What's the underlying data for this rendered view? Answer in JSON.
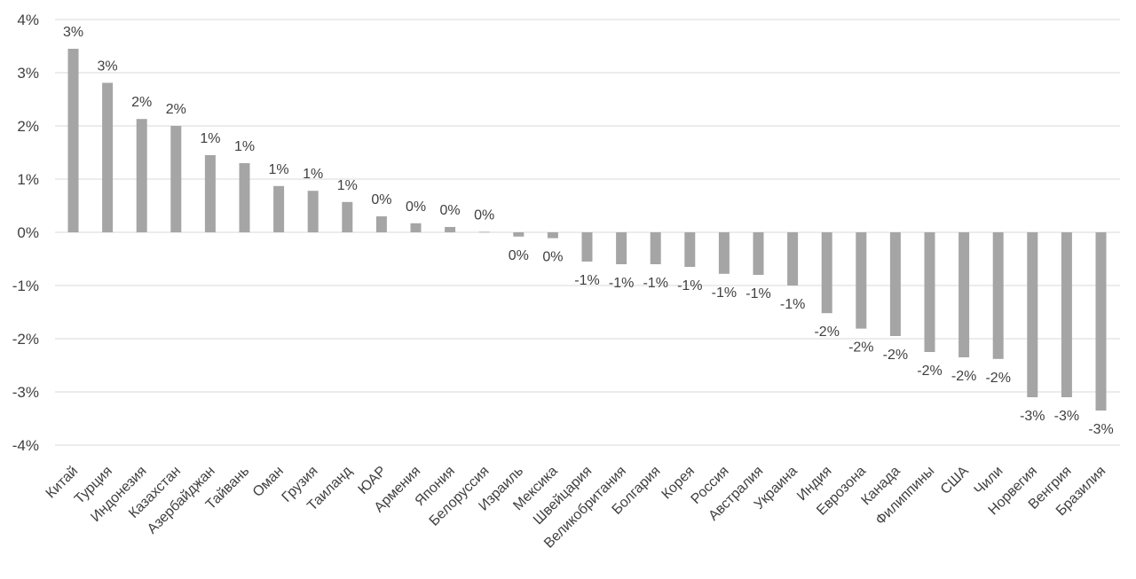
{
  "chart_data": {
    "type": "bar",
    "title": "",
    "xlabel": "",
    "ylabel": "",
    "ylim": [
      -0.04,
      0.04
    ],
    "y_ticks": [
      {
        "value": 0.04,
        "label": "4%"
      },
      {
        "value": 0.03,
        "label": "3%"
      },
      {
        "value": 0.02,
        "label": "2%"
      },
      {
        "value": 0.01,
        "label": "1%"
      },
      {
        "value": 0.0,
        "label": "0%"
      },
      {
        "value": -0.01,
        "label": "-1%"
      },
      {
        "value": -0.02,
        "label": "-2%"
      },
      {
        "value": -0.03,
        "label": "-3%"
      },
      {
        "value": -0.04,
        "label": "-4%"
      }
    ],
    "grid": true,
    "legend": "none",
    "bar_color": "#a5a5a5",
    "categories": [
      "Китай",
      "Турция",
      "Индонезия",
      "Казахстан",
      "Азербайджан",
      "Тайвань",
      "Оман",
      "Грузия",
      "Таиланд",
      "ЮАР",
      "Армения",
      "Япония",
      "Белоруссия",
      "Израиль",
      "Мексика",
      "Швейцария",
      "Великобритания",
      "Болгария",
      "Корея",
      "Россия",
      "Австралия",
      "Украина",
      "Индия",
      "Еврозона",
      "Канада",
      "Филиппины",
      "США",
      "Чили",
      "Норвегия",
      "Венгрия",
      "Бразилия"
    ],
    "values": [
      0.0345,
      0.0281,
      0.0213,
      0.02,
      0.0145,
      0.013,
      0.0087,
      0.0078,
      0.0057,
      0.003,
      0.0017,
      0.001,
      0.0001,
      -0.0008,
      -0.0011,
      -0.0055,
      -0.006,
      -0.006,
      -0.0065,
      -0.0078,
      -0.008,
      -0.01,
      -0.0152,
      -0.0181,
      -0.0195,
      -0.0225,
      -0.0235,
      -0.0238,
      -0.031,
      -0.031,
      -0.0335
    ],
    "data_labels": [
      "3%",
      "3%",
      "2%",
      "2%",
      "1%",
      "1%",
      "1%",
      "1%",
      "1%",
      "0%",
      "0%",
      "0%",
      "0%",
      "0%",
      "0%",
      "-1%",
      "-1%",
      "-1%",
      "-1%",
      "-1%",
      "-1%",
      "-1%",
      "-2%",
      "-2%",
      "-2%",
      "-2%",
      "-2%",
      "-2%",
      "-3%",
      "-3%",
      "-3%"
    ]
  }
}
